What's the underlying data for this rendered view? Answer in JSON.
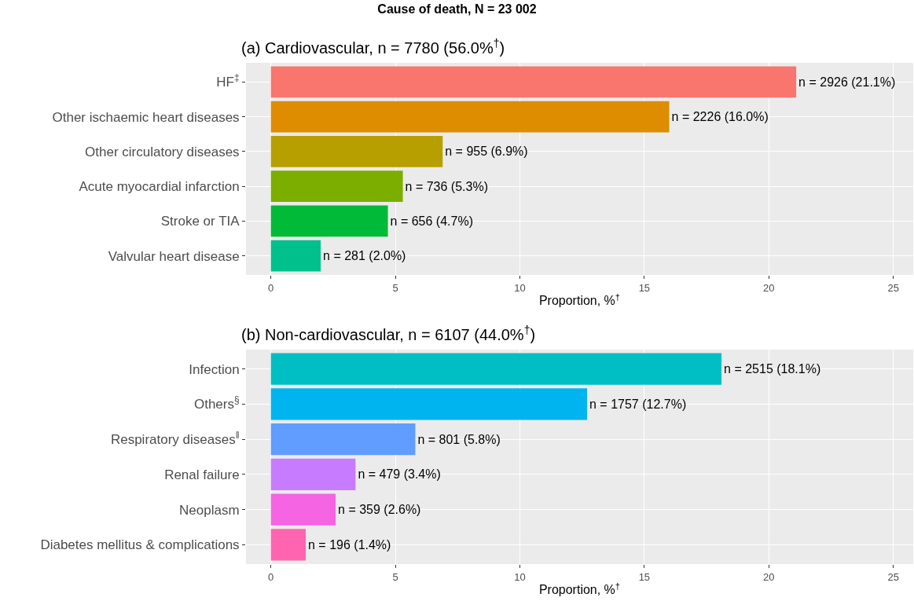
{
  "chart_data": [
    {
      "type": "bar",
      "orientation": "horizontal",
      "title": "Cause of death, N = 23 002",
      "subtitle": "(a) Cardiovascular, n = 7780 (56.0%$^{†}$)",
      "xlabel": "Proportion, %$^{†}$",
      "categories": [
        "HF$^{‡}$",
        "Other ischaemic heart diseases",
        "Other circulatory diseases",
        "Acute myocardial infarction",
        "Stroke or TIA",
        "Valvular heart disease"
      ],
      "values": [
        21.1,
        16.0,
        6.9,
        5.3,
        4.7,
        2.0
      ],
      "value_labels": [
        "n = 2926 (21.1%)",
        "n = 2226 (16.0%)",
        "n = 955 (6.9%)",
        "n = 736 (5.3%)",
        "n = 656 (4.7%)",
        "n = 281 (2.0%)"
      ],
      "colors": [
        "#f8766d",
        "#de8c00",
        "#b79f00",
        "#7cae00",
        "#00ba38",
        "#00c08b"
      ],
      "xlim": [
        -1,
        25.8
      ],
      "xticks": [
        0,
        5,
        10,
        15,
        20,
        25
      ],
      "grid": true
    },
    {
      "type": "bar",
      "orientation": "horizontal",
      "subtitle": "(b) Non-cardiovascular, n = 6107 (44.0%$^{†}$)",
      "xlabel": "Proportion, %$^{†}$",
      "categories": [
        "Infection",
        "Others$^{§}$",
        "Respiratory diseases$^{‖}$",
        "Renal failure",
        "Neoplasm",
        "Diabetes mellitus & complications"
      ],
      "values": [
        18.1,
        12.7,
        5.8,
        3.4,
        2.6,
        1.4
      ],
      "value_labels": [
        "n = 2515 (18.1%)",
        "n = 1757 (12.7%)",
        "n = 801 (5.8%)",
        "n = 479 (3.4%)",
        "n = 359 (2.6%)",
        "n = 196 (1.4%)"
      ],
      "colors": [
        "#00bfc4",
        "#00b4ef",
        "#619cff",
        "#c77cff",
        "#f564e3",
        "#ff64b0"
      ],
      "xlim": [
        -1,
        25.8
      ],
      "xticks": [
        0,
        5,
        10,
        15,
        20,
        25
      ],
      "grid": true
    }
  ]
}
